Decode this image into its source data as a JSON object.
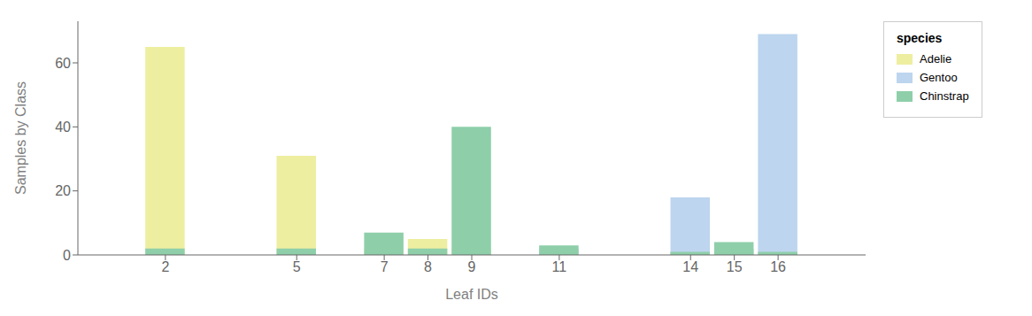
{
  "chart_data": {
    "type": "bar",
    "x": [
      2,
      5,
      7,
      8,
      9,
      11,
      14,
      15,
      16
    ],
    "series": [
      {
        "name": "Adelie",
        "color": "#eeeea0",
        "values": [
          65,
          31,
          2,
          5,
          2,
          1,
          1,
          1,
          0
        ]
      },
      {
        "name": "Gentoo",
        "color": "#bdd5ee",
        "values": [
          0,
          0,
          0,
          0,
          0,
          2,
          18,
          2,
          69
        ]
      },
      {
        "name": "Chinstrap",
        "color": "#8ecfaa",
        "values": [
          2,
          2,
          7,
          2,
          40,
          3,
          1,
          4,
          1
        ]
      }
    ],
    "xlabel": "Leaf IDs",
    "ylabel": "Samples by Class",
    "legend_title": "species",
    "legend": "right",
    "xlim": [
      0,
      18
    ],
    "xticks": [
      2,
      5,
      7,
      8,
      9,
      11,
      14,
      15,
      16
    ],
    "ylim": [
      0,
      73
    ],
    "yticks": [
      0,
      20,
      40,
      60
    ],
    "grid": false
  }
}
